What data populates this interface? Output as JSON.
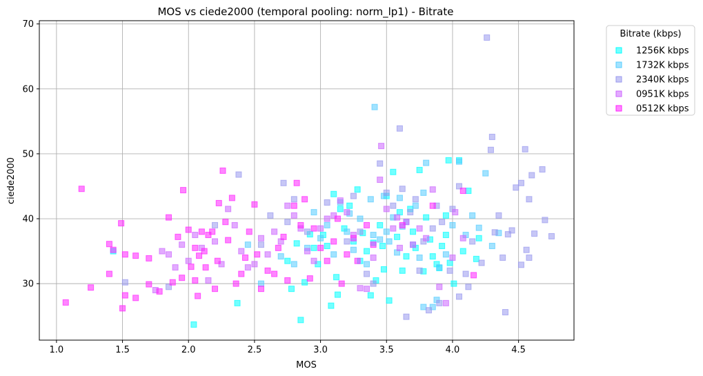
{
  "chart_data": {
    "type": "scatter",
    "title": "MOS vs ciede2000 (temporal pooling: norm_lp1) - Bitrate",
    "xlabel": "MOS",
    "ylabel": "ciede2000",
    "xlim": [
      0.87,
      4.92
    ],
    "ylim": [
      21.3,
      70.5
    ],
    "xticks": [
      1.0,
      1.5,
      2.0,
      2.5,
      3.0,
      3.5,
      4.0,
      4.5
    ],
    "yticks": [
      30,
      40,
      50,
      60,
      70
    ],
    "grid": true,
    "legend": {
      "title": "Bitrate (kbps)",
      "position": "outside-top-right"
    },
    "marker": "square",
    "series": [
      {
        "name": "1256K kbps",
        "color": "#00ffff",
        "points": [
          [
            2.04,
            23.7
          ],
          [
            2.37,
            27.0
          ],
          [
            2.85,
            24.4
          ],
          [
            3.08,
            26.6
          ],
          [
            3.13,
            28.3
          ],
          [
            3.38,
            28.2
          ],
          [
            3.52,
            27.4
          ],
          [
            3.62,
            32.0
          ],
          [
            3.72,
            35.5
          ],
          [
            3.78,
            31.9
          ],
          [
            3.85,
            34.2
          ],
          [
            3.92,
            35.8
          ],
          [
            3.95,
            37.5
          ],
          [
            3.98,
            33.2
          ],
          [
            4.01,
            30.0
          ],
          [
            4.05,
            49.0
          ],
          [
            4.08,
            35.0
          ],
          [
            4.12,
            44.3
          ],
          [
            4.18,
            33.8
          ],
          [
            3.97,
            49.0
          ],
          [
            3.55,
            47.2
          ],
          [
            3.5,
            43.5
          ],
          [
            3.45,
            39.0
          ],
          [
            3.4,
            36.3
          ],
          [
            3.35,
            35.0
          ],
          [
            3.3,
            33.5
          ],
          [
            3.25,
            36.5
          ],
          [
            3.22,
            42.0
          ],
          [
            3.18,
            38.5
          ],
          [
            3.12,
            31.0
          ],
          [
            3.05,
            35.8
          ],
          [
            3.02,
            37.5
          ],
          [
            2.98,
            33.0
          ],
          [
            2.95,
            35.5
          ],
          [
            2.88,
            30.2
          ],
          [
            2.82,
            36.2
          ],
          [
            2.78,
            29.2
          ],
          [
            2.75,
            33.5
          ],
          [
            3.65,
            34.2
          ],
          [
            3.68,
            41.5
          ],
          [
            3.75,
            47.5
          ],
          [
            3.8,
            40.2
          ],
          [
            3.88,
            33.0
          ],
          [
            3.42,
            30.5
          ],
          [
            3.47,
            35.8
          ],
          [
            3.58,
            37.2
          ],
          [
            3.7,
            38.0
          ],
          [
            3.9,
            32.4
          ],
          [
            4.2,
            37.0
          ],
          [
            3.32,
            37.8
          ],
          [
            3.15,
            41.5
          ],
          [
            3.1,
            43.8
          ],
          [
            2.92,
            37.6
          ],
          [
            3.6,
            41.0
          ],
          [
            3.28,
            44.5
          ],
          [
            3.95,
            40.5
          ],
          [
            3.83,
            36.8
          ],
          [
            3.48,
            32.2
          ],
          [
            1.43,
            35.0
          ]
        ]
      },
      {
        "name": "1732K kbps",
        "color": "#55ccff",
        "points": [
          [
            3.41,
            57.2
          ],
          [
            4.25,
            47.0
          ],
          [
            4.05,
            48.8
          ],
          [
            3.8,
            48.6
          ],
          [
            3.78,
            44.0
          ],
          [
            3.6,
            43.2
          ],
          [
            3.55,
            40.2
          ],
          [
            3.5,
            38.0
          ],
          [
            3.45,
            36.8
          ],
          [
            3.4,
            37.5
          ],
          [
            3.35,
            33.0
          ],
          [
            3.3,
            40.0
          ],
          [
            3.25,
            35.2
          ],
          [
            3.2,
            38.0
          ],
          [
            3.15,
            42.5
          ],
          [
            3.1,
            34.5
          ],
          [
            3.05,
            39.0
          ],
          [
            3.0,
            37.0
          ],
          [
            2.95,
            41.0
          ],
          [
            2.9,
            35.5
          ],
          [
            3.7,
            36.0
          ],
          [
            3.75,
            34.0
          ],
          [
            3.85,
            26.4
          ],
          [
            3.9,
            32.5
          ],
          [
            3.95,
            34.5
          ],
          [
            4.0,
            39.0
          ],
          [
            4.1,
            37.5
          ],
          [
            4.2,
            38.6
          ],
          [
            4.3,
            35.8
          ],
          [
            4.35,
            37.8
          ],
          [
            3.78,
            26.4
          ],
          [
            3.88,
            27.5
          ],
          [
            2.8,
            33.0
          ],
          [
            2.7,
            34.2
          ],
          [
            3.62,
            38.8
          ],
          [
            3.48,
            43.5
          ],
          [
            3.52,
            36.5
          ],
          [
            3.65,
            39.5
          ],
          [
            4.15,
            40.5
          ],
          [
            2.45,
            36.0
          ],
          [
            3.38,
            43.0
          ],
          [
            3.22,
            40.8
          ],
          [
            2.55,
            30.0
          ],
          [
            3.58,
            34.8
          ],
          [
            3.72,
            42.0
          ]
        ]
      },
      {
        "name": "2340K kbps",
        "color": "#9999ee",
        "points": [
          [
            4.26,
            67.9
          ],
          [
            4.3,
            52.6
          ],
          [
            4.29,
            50.6
          ],
          [
            4.55,
            50.7
          ],
          [
            4.52,
            45.5
          ],
          [
            4.48,
            44.8
          ],
          [
            4.58,
            43.0
          ],
          [
            4.6,
            46.7
          ],
          [
            4.68,
            47.6
          ],
          [
            4.7,
            39.8
          ],
          [
            4.75,
            37.3
          ],
          [
            4.62,
            37.7
          ],
          [
            4.56,
            35.2
          ],
          [
            4.58,
            34.0
          ],
          [
            4.52,
            32.9
          ],
          [
            4.4,
            25.6
          ],
          [
            4.38,
            34.0
          ],
          [
            4.35,
            40.5
          ],
          [
            4.22,
            33.2
          ],
          [
            4.15,
            36.5
          ],
          [
            4.12,
            29.5
          ],
          [
            4.1,
            31.5
          ],
          [
            4.05,
            28.0
          ],
          [
            3.98,
            32.0
          ],
          [
            3.9,
            27.0
          ],
          [
            3.82,
            25.9
          ],
          [
            3.75,
            32.0
          ],
          [
            3.65,
            24.9
          ],
          [
            3.6,
            53.9
          ],
          [
            3.45,
            48.5
          ],
          [
            3.4,
            30.0
          ],
          [
            3.35,
            31.5
          ],
          [
            3.3,
            38.0
          ],
          [
            3.5,
            44.0
          ],
          [
            3.55,
            42.0
          ],
          [
            3.68,
            41.0
          ],
          [
            3.72,
            43.0
          ],
          [
            3.78,
            36.5
          ],
          [
            3.85,
            38.5
          ],
          [
            3.92,
            39.5
          ],
          [
            4.0,
            41.5
          ],
          [
            4.05,
            45.0
          ],
          [
            2.72,
            45.5
          ],
          [
            2.75,
            39.5
          ],
          [
            2.62,
            40.5
          ],
          [
            2.55,
            36.0
          ],
          [
            2.38,
            46.8
          ],
          [
            2.2,
            39.0
          ],
          [
            1.85,
            29.5
          ],
          [
            1.52,
            30.2
          ],
          [
            2.8,
            43.0
          ],
          [
            2.9,
            38.0
          ],
          [
            3.05,
            42.5
          ],
          [
            3.2,
            36.5
          ],
          [
            3.25,
            43.5
          ],
          [
            4.45,
            38.2
          ],
          [
            4.42,
            37.6
          ],
          [
            4.32,
            37.9
          ],
          [
            3.88,
            42.0
          ],
          [
            3.62,
            44.6
          ]
        ]
      },
      {
        "name": "0951K kbps",
        "color": "#cc66ff",
        "points": [
          [
            3.46,
            51.2
          ],
          [
            3.45,
            46.0
          ],
          [
            3.5,
            41.5
          ],
          [
            3.55,
            38.5
          ],
          [
            3.4,
            34.0
          ],
          [
            3.3,
            29.3
          ],
          [
            3.35,
            29.2
          ],
          [
            3.6,
            35.5
          ],
          [
            3.7,
            36.0
          ],
          [
            3.8,
            37.0
          ],
          [
            3.9,
            29.5
          ],
          [
            3.95,
            27.0
          ],
          [
            4.0,
            34.0
          ],
          [
            4.02,
            41.0
          ],
          [
            4.08,
            37.0
          ],
          [
            3.25,
            37.5
          ],
          [
            3.2,
            41.0
          ],
          [
            3.1,
            40.5
          ],
          [
            3.0,
            38.5
          ],
          [
            2.95,
            33.5
          ],
          [
            2.9,
            35.0
          ],
          [
            2.85,
            38.5
          ],
          [
            2.8,
            40.5
          ],
          [
            2.7,
            36.5
          ],
          [
            2.6,
            34.5
          ],
          [
            2.5,
            33.0
          ],
          [
            2.4,
            35.0
          ],
          [
            2.35,
            39.0
          ],
          [
            2.3,
            41.5
          ],
          [
            2.25,
            33.0
          ],
          [
            2.2,
            36.5
          ],
          [
            2.15,
            30.5
          ],
          [
            2.1,
            35.5
          ],
          [
            2.05,
            37.5
          ],
          [
            2.0,
            33.5
          ],
          [
            1.95,
            36.0
          ],
          [
            1.9,
            32.5
          ],
          [
            1.85,
            34.5
          ],
          [
            1.8,
            35.0
          ],
          [
            1.75,
            29.0
          ],
          [
            3.65,
            39.5
          ],
          [
            3.75,
            38.5
          ],
          [
            3.85,
            44.5
          ],
          [
            3.15,
            42.8
          ],
          [
            3.05,
            40.0
          ],
          [
            2.75,
            42.0
          ],
          [
            2.65,
            38.0
          ],
          [
            2.55,
            37.0
          ],
          [
            2.45,
            32.5
          ],
          [
            3.58,
            40.2
          ]
        ]
      },
      {
        "name": "0512K kbps",
        "color": "#ff22ff",
        "points": [
          [
            1.07,
            27.1
          ],
          [
            1.19,
            44.6
          ],
          [
            1.26,
            29.4
          ],
          [
            1.4,
            31.5
          ],
          [
            1.4,
            36.1
          ],
          [
            1.43,
            35.2
          ],
          [
            1.49,
            39.3
          ],
          [
            1.5,
            26.2
          ],
          [
            1.52,
            34.5
          ],
          [
            1.52,
            28.2
          ],
          [
            1.6,
            27.8
          ],
          [
            1.6,
            34.3
          ],
          [
            1.7,
            33.9
          ],
          [
            1.7,
            29.9
          ],
          [
            1.78,
            28.8
          ],
          [
            1.85,
            40.2
          ],
          [
            1.88,
            30.2
          ],
          [
            1.92,
            37.2
          ],
          [
            1.95,
            30.9
          ],
          [
            1.96,
            44.4
          ],
          [
            2.0,
            38.3
          ],
          [
            2.02,
            32.6
          ],
          [
            2.05,
            35.5
          ],
          [
            2.05,
            30.5
          ],
          [
            2.07,
            28.1
          ],
          [
            2.08,
            34.3
          ],
          [
            2.1,
            38.0
          ],
          [
            2.12,
            35.0
          ],
          [
            2.13,
            32.5
          ],
          [
            2.15,
            37.5
          ],
          [
            2.2,
            29.2
          ],
          [
            2.22,
            33.5
          ],
          [
            2.23,
            42.4
          ],
          [
            2.26,
            47.4
          ],
          [
            2.28,
            39.5
          ],
          [
            2.3,
            36.7
          ],
          [
            2.33,
            43.2
          ],
          [
            2.36,
            30.0
          ],
          [
            2.4,
            31.5
          ],
          [
            2.43,
            34.0
          ],
          [
            2.46,
            38.0
          ],
          [
            2.5,
            42.2
          ],
          [
            2.52,
            34.5
          ],
          [
            2.55,
            29.2
          ],
          [
            2.6,
            32.0
          ],
          [
            2.65,
            31.5
          ],
          [
            2.68,
            35.5
          ],
          [
            2.72,
            37.2
          ],
          [
            2.75,
            30.5
          ],
          [
            2.8,
            42.0
          ],
          [
            2.82,
            45.5
          ],
          [
            2.85,
            39.0
          ],
          [
            2.88,
            43.0
          ],
          [
            2.92,
            30.8
          ],
          [
            2.95,
            38.5
          ],
          [
            3.0,
            35.5
          ],
          [
            3.05,
            33.5
          ],
          [
            3.1,
            36.5
          ],
          [
            3.13,
            40.0
          ],
          [
            3.16,
            30.0
          ],
          [
            3.2,
            34.5
          ],
          [
            3.25,
            37.0
          ],
          [
            3.28,
            33.5
          ],
          [
            3.35,
            39.0
          ],
          [
            3.4,
            36.0
          ],
          [
            3.62,
            39.0
          ],
          [
            3.85,
            42.0
          ],
          [
            4.08,
            44.3
          ],
          [
            4.16,
            31.3
          ],
          [
            2.18,
            38.0
          ]
        ]
      }
    ]
  }
}
